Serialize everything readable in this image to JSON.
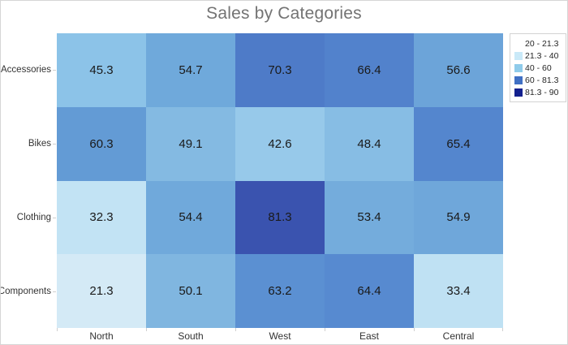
{
  "chart_data": {
    "type": "heatmap",
    "title": "Sales by Categories",
    "x_categories": [
      "North",
      "South",
      "West",
      "East",
      "Central"
    ],
    "y_categories": [
      "Accessories",
      "Bikes",
      "Clothing",
      "Components"
    ],
    "value_range": [
      20,
      90
    ],
    "grid": false,
    "rows": [
      {
        "category": "Accessories",
        "cells": [
          {
            "value": 45.3,
            "color": "#8cc3e8"
          },
          {
            "value": 54.7,
            "color": "#6fa9db"
          },
          {
            "value": 70.3,
            "color": "#4e7bc8"
          },
          {
            "value": 66.4,
            "color": "#5282cc"
          },
          {
            "value": 56.6,
            "color": "#6ca4d9"
          }
        ]
      },
      {
        "category": "Bikes",
        "cells": [
          {
            "value": 60.3,
            "color": "#639bd5"
          },
          {
            "value": 49.1,
            "color": "#84bae2"
          },
          {
            "value": 42.6,
            "color": "#97c9ea"
          },
          {
            "value": 48.4,
            "color": "#87bde4"
          },
          {
            "value": 65.4,
            "color": "#5486ce"
          }
        ]
      },
      {
        "category": "Clothing",
        "cells": [
          {
            "value": 32.3,
            "color": "#c2e3f4"
          },
          {
            "value": 54.4,
            "color": "#70a9db"
          },
          {
            "value": 81.3,
            "color": "#3a53af"
          },
          {
            "value": 53.4,
            "color": "#74acdc"
          },
          {
            "value": 54.9,
            "color": "#6fa7da"
          }
        ]
      },
      {
        "category": "Components",
        "cells": [
          {
            "value": 21.3,
            "color": "#d4eaf6"
          },
          {
            "value": 50.1,
            "color": "#80b6e0"
          },
          {
            "value": 63.2,
            "color": "#5b90d2"
          },
          {
            "value": 64.4,
            "color": "#578ad0"
          },
          {
            "value": 33.4,
            "color": "#bfe1f3"
          }
        ]
      }
    ],
    "legend": {
      "position": "top-right",
      "items": [
        {
          "label": "20 - 21.3",
          "color": "#ffffff"
        },
        {
          "label": "21.3 - 40",
          "color": "#c9e9f8"
        },
        {
          "label": "40 - 60",
          "color": "#8fcbea"
        },
        {
          "label": "60 - 81.3",
          "color": "#4070c4"
        },
        {
          "label": "81.3 - 90",
          "color": "#13208e"
        }
      ]
    }
  },
  "colors": {
    "title_text": "#737373",
    "cell_text": "#1a1a1a",
    "axis_text": "#333333",
    "frame_border": "#d6d6d6",
    "tick": "#cfcfcf",
    "background": "#ffffff"
  }
}
